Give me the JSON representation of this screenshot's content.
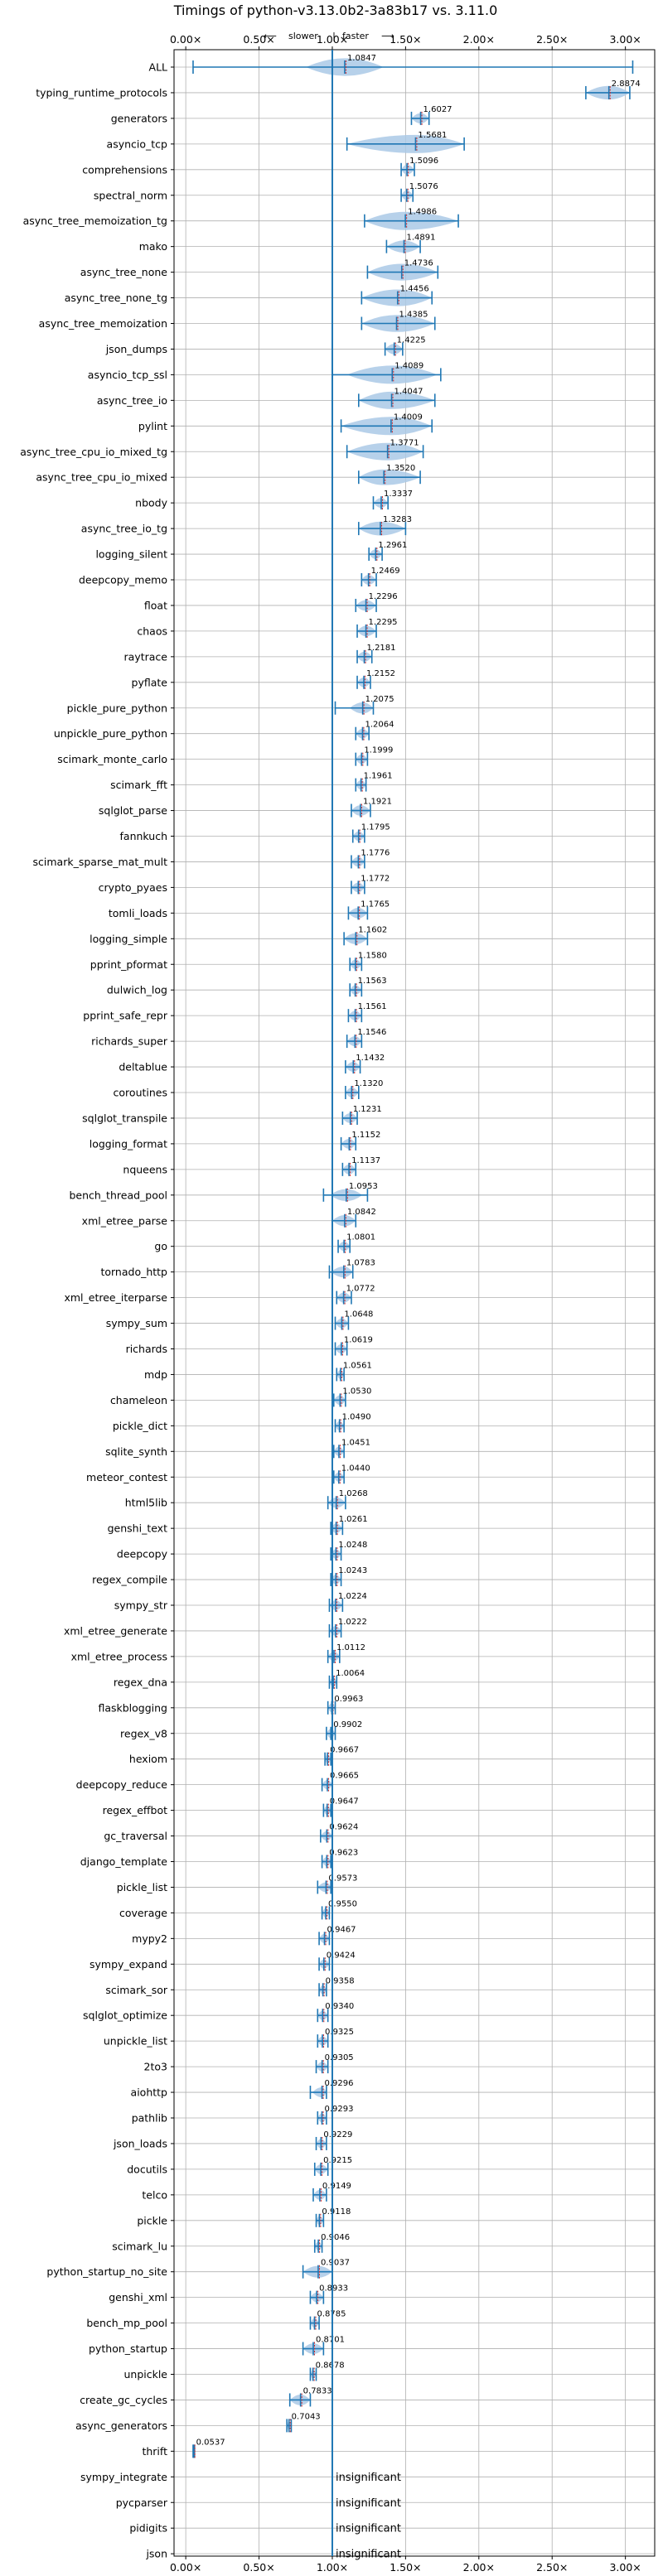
{
  "chart_data": {
    "type": "violin",
    "title": "Timings of python-v3.13.0b2-3a83b17 vs. 3.11.0",
    "direction_hint": {
      "slower": "slower",
      "faster": "faster",
      "left_arrow": "⟵",
      "right_arrow": "⟶",
      "separator": "|"
    },
    "x_ticks": [
      "0.00×",
      "0.50×",
      "1.00×",
      "1.50×",
      "2.00×",
      "2.50×",
      "3.00×"
    ],
    "x_tick_values": [
      0,
      0.5,
      1.0,
      1.5,
      2.0,
      2.5,
      3.0
    ],
    "xlim": [
      -0.08,
      3.2
    ],
    "reference_line": 1.0,
    "insignificant_label": "insignificant",
    "grid": true,
    "colors": {
      "violin": "#aac9e6",
      "line": "#1f77b4",
      "median": "#d62728",
      "grid": "#b0b0b0"
    },
    "benchmarks": [
      {
        "name": "ALL",
        "value": 1.0847,
        "label": "1.0847",
        "min": 0.05,
        "max": 3.05,
        "spread": 0.12
      },
      {
        "name": "typing_runtime_protocols",
        "value": 2.8874,
        "label": "2.8874",
        "min": 2.73,
        "max": 3.03,
        "spread": 0.12
      },
      {
        "name": "generators",
        "value": 1.6027,
        "label": "1.6027",
        "min": 1.54,
        "max": 1.66,
        "spread": 0.06
      },
      {
        "name": "asyncio_tcp",
        "value": 1.5681,
        "label": "1.5681",
        "min": 1.1,
        "max": 1.9,
        "spread": 0.22
      },
      {
        "name": "comprehensions",
        "value": 1.5096,
        "label": "1.5096",
        "min": 1.47,
        "max": 1.56,
        "spread": 0.05
      },
      {
        "name": "spectral_norm",
        "value": 1.5076,
        "label": "1.5076",
        "min": 1.47,
        "max": 1.55,
        "spread": 0.04
      },
      {
        "name": "async_tree_memoization_tg",
        "value": 1.4986,
        "label": "1.4986",
        "min": 1.22,
        "max": 1.86,
        "spread": 0.22
      },
      {
        "name": "mako",
        "value": 1.4891,
        "label": "1.4891",
        "min": 1.37,
        "max": 1.6,
        "spread": 0.09
      },
      {
        "name": "async_tree_none",
        "value": 1.4736,
        "label": "1.4736",
        "min": 1.24,
        "max": 1.72,
        "spread": 0.2
      },
      {
        "name": "async_tree_none_tg",
        "value": 1.4456,
        "label": "1.4456",
        "min": 1.2,
        "max": 1.68,
        "spread": 0.22
      },
      {
        "name": "async_tree_memoization",
        "value": 1.4385,
        "label": "1.4385",
        "min": 1.2,
        "max": 1.7,
        "spread": 0.22
      },
      {
        "name": "json_dumps",
        "value": 1.4225,
        "label": "1.4225",
        "min": 1.36,
        "max": 1.48,
        "spread": 0.06
      },
      {
        "name": "asyncio_tcp_ssl",
        "value": 1.4089,
        "label": "1.4089",
        "min": 1.0,
        "max": 1.74,
        "spread": 0.14
      },
      {
        "name": "async_tree_io",
        "value": 1.4047,
        "label": "1.4047",
        "min": 1.18,
        "max": 1.7,
        "spread": 0.2
      },
      {
        "name": "pylint",
        "value": 1.4009,
        "label": "1.4009",
        "min": 1.06,
        "max": 1.68,
        "spread": 0.18
      },
      {
        "name": "async_tree_cpu_io_mixed_tg",
        "value": 1.3771,
        "label": "1.3771",
        "min": 1.1,
        "max": 1.62,
        "spread": 0.14
      },
      {
        "name": "async_tree_cpu_io_mixed",
        "value": 1.352,
        "label": "1.3520",
        "min": 1.18,
        "max": 1.6,
        "spread": 0.18
      },
      {
        "name": "nbody",
        "value": 1.3337,
        "label": "1.3337",
        "min": 1.28,
        "max": 1.38,
        "spread": 0.04
      },
      {
        "name": "async_tree_io_tg",
        "value": 1.3283,
        "label": "1.3283",
        "min": 1.18,
        "max": 1.5,
        "spread": 0.15
      },
      {
        "name": "logging_silent",
        "value": 1.2961,
        "label": "1.2961",
        "min": 1.25,
        "max": 1.34,
        "spread": 0.04
      },
      {
        "name": "deepcopy_memo",
        "value": 1.2469,
        "label": "1.2469",
        "min": 1.2,
        "max": 1.3,
        "spread": 0.05
      },
      {
        "name": "float",
        "value": 1.2296,
        "label": "1.2296",
        "min": 1.16,
        "max": 1.3,
        "spread": 0.05
      },
      {
        "name": "chaos",
        "value": 1.2295,
        "label": "1.2295",
        "min": 1.17,
        "max": 1.3,
        "spread": 0.05
      },
      {
        "name": "raytrace",
        "value": 1.2181,
        "label": "1.2181",
        "min": 1.17,
        "max": 1.27,
        "spread": 0.04
      },
      {
        "name": "pyflate",
        "value": 1.2152,
        "label": "1.2152",
        "min": 1.17,
        "max": 1.26,
        "spread": 0.04
      },
      {
        "name": "pickle_pure_python",
        "value": 1.2075,
        "label": "1.2075",
        "min": 1.02,
        "max": 1.28,
        "spread": 0.04
      },
      {
        "name": "unpickle_pure_python",
        "value": 1.2064,
        "label": "1.2064",
        "min": 1.16,
        "max": 1.25,
        "spread": 0.04
      },
      {
        "name": "scimark_monte_carlo",
        "value": 1.1999,
        "label": "1.1999",
        "min": 1.16,
        "max": 1.24,
        "spread": 0.04
      },
      {
        "name": "scimark_fft",
        "value": 1.1961,
        "label": "1.1961",
        "min": 1.16,
        "max": 1.23,
        "spread": 0.03
      },
      {
        "name": "sqlglot_parse",
        "value": 1.1921,
        "label": "1.1921",
        "min": 1.13,
        "max": 1.26,
        "spread": 0.04
      },
      {
        "name": "fannkuch",
        "value": 1.1795,
        "label": "1.1795",
        "min": 1.14,
        "max": 1.22,
        "spread": 0.04
      },
      {
        "name": "scimark_sparse_mat_mult",
        "value": 1.1776,
        "label": "1.1776",
        "min": 1.13,
        "max": 1.22,
        "spread": 0.04
      },
      {
        "name": "crypto_pyaes",
        "value": 1.1772,
        "label": "1.1772",
        "min": 1.13,
        "max": 1.22,
        "spread": 0.04
      },
      {
        "name": "tomli_loads",
        "value": 1.1765,
        "label": "1.1765",
        "min": 1.11,
        "max": 1.24,
        "spread": 0.04
      },
      {
        "name": "logging_simple",
        "value": 1.1602,
        "label": "1.1602",
        "min": 1.08,
        "max": 1.24,
        "spread": 0.05
      },
      {
        "name": "pprint_pformat",
        "value": 1.158,
        "label": "1.1580",
        "min": 1.12,
        "max": 1.2,
        "spread": 0.04
      },
      {
        "name": "dulwich_log",
        "value": 1.1563,
        "label": "1.1563",
        "min": 1.12,
        "max": 1.2,
        "spread": 0.04
      },
      {
        "name": "pprint_safe_repr",
        "value": 1.1561,
        "label": "1.1561",
        "min": 1.11,
        "max": 1.2,
        "spread": 0.04
      },
      {
        "name": "richards_super",
        "value": 1.1546,
        "label": "1.1546",
        "min": 1.1,
        "max": 1.2,
        "spread": 0.04
      },
      {
        "name": "deltablue",
        "value": 1.1432,
        "label": "1.1432",
        "min": 1.09,
        "max": 1.19,
        "spread": 0.04
      },
      {
        "name": "coroutines",
        "value": 1.132,
        "label": "1.1320",
        "min": 1.09,
        "max": 1.18,
        "spread": 0.04
      },
      {
        "name": "sqlglot_transpile",
        "value": 1.1231,
        "label": "1.1231",
        "min": 1.07,
        "max": 1.17,
        "spread": 0.04
      },
      {
        "name": "logging_format",
        "value": 1.1152,
        "label": "1.1152",
        "min": 1.06,
        "max": 1.16,
        "spread": 0.04
      },
      {
        "name": "nqueens",
        "value": 1.1137,
        "label": "1.1137",
        "min": 1.07,
        "max": 1.16,
        "spread": 0.04
      },
      {
        "name": "bench_thread_pool",
        "value": 1.0953,
        "label": "1.0953",
        "min": 0.94,
        "max": 1.24,
        "spread": 0.05
      },
      {
        "name": "xml_etree_parse",
        "value": 1.0842,
        "label": "1.0842",
        "min": 1.0,
        "max": 1.16,
        "spread": 0.04
      },
      {
        "name": "go",
        "value": 1.0801,
        "label": "1.0801",
        "min": 1.04,
        "max": 1.12,
        "spread": 0.04
      },
      {
        "name": "tornado_http",
        "value": 1.0783,
        "label": "1.0783",
        "min": 0.98,
        "max": 1.14,
        "spread": 0.04
      },
      {
        "name": "xml_etree_iterparse",
        "value": 1.0772,
        "label": "1.0772",
        "min": 1.03,
        "max": 1.13,
        "spread": 0.04
      },
      {
        "name": "sympy_sum",
        "value": 1.0648,
        "label": "1.0648",
        "min": 1.02,
        "max": 1.11,
        "spread": 0.04
      },
      {
        "name": "richards",
        "value": 1.0619,
        "label": "1.0619",
        "min": 1.02,
        "max": 1.1,
        "spread": 0.04
      },
      {
        "name": "mdp",
        "value": 1.0561,
        "label": "1.0561",
        "min": 1.03,
        "max": 1.08,
        "spread": 0.03
      },
      {
        "name": "chameleon",
        "value": 1.053,
        "label": "1.0530",
        "min": 1.01,
        "max": 1.09,
        "spread": 0.04
      },
      {
        "name": "pickle_dict",
        "value": 1.049,
        "label": "1.0490",
        "min": 1.02,
        "max": 1.08,
        "spread": 0.03
      },
      {
        "name": "sqlite_synth",
        "value": 1.0451,
        "label": "1.0451",
        "min": 1.01,
        "max": 1.08,
        "spread": 0.03
      },
      {
        "name": "meteor_contest",
        "value": 1.044,
        "label": "1.0440",
        "min": 1.01,
        "max": 1.08,
        "spread": 0.03
      },
      {
        "name": "html5lib",
        "value": 1.0268,
        "label": "1.0268",
        "min": 0.97,
        "max": 1.09,
        "spread": 0.04
      },
      {
        "name": "genshi_text",
        "value": 1.0261,
        "label": "1.0261",
        "min": 0.99,
        "max": 1.07,
        "spread": 0.03
      },
      {
        "name": "deepcopy",
        "value": 1.0248,
        "label": "1.0248",
        "min": 0.99,
        "max": 1.06,
        "spread": 0.03
      },
      {
        "name": "regex_compile",
        "value": 1.0243,
        "label": "1.0243",
        "min": 0.99,
        "max": 1.06,
        "spread": 0.03
      },
      {
        "name": "sympy_str",
        "value": 1.0224,
        "label": "1.0224",
        "min": 0.98,
        "max": 1.07,
        "spread": 0.04
      },
      {
        "name": "xml_etree_generate",
        "value": 1.0222,
        "label": "1.0222",
        "min": 0.98,
        "max": 1.06,
        "spread": 0.03
      },
      {
        "name": "xml_etree_process",
        "value": 1.0112,
        "label": "1.0112",
        "min": 0.97,
        "max": 1.05,
        "spread": 0.03
      },
      {
        "name": "regex_dna",
        "value": 1.0064,
        "label": "1.0064",
        "min": 0.98,
        "max": 1.03,
        "spread": 0.03
      },
      {
        "name": "flaskblogging",
        "value": 0.9963,
        "label": "0.9963",
        "min": 0.97,
        "max": 1.02,
        "spread": 0.03
      },
      {
        "name": "regex_v8",
        "value": 0.9902,
        "label": "0.9902",
        "min": 0.96,
        "max": 1.02,
        "spread": 0.03
      },
      {
        "name": "hexiom",
        "value": 0.9667,
        "label": "0.9667",
        "min": 0.95,
        "max": 0.99,
        "spread": 0.03
      },
      {
        "name": "deepcopy_reduce",
        "value": 0.9665,
        "label": "0.9665",
        "min": 0.93,
        "max": 1.0,
        "spread": 0.03
      },
      {
        "name": "regex_effbot",
        "value": 0.9647,
        "label": "0.9647",
        "min": 0.94,
        "max": 0.99,
        "spread": 0.03
      },
      {
        "name": "gc_traversal",
        "value": 0.9624,
        "label": "0.9624",
        "min": 0.92,
        "max": 1.0,
        "spread": 0.03
      },
      {
        "name": "django_template",
        "value": 0.9623,
        "label": "0.9623",
        "min": 0.93,
        "max": 0.99,
        "spread": 0.03
      },
      {
        "name": "pickle_list",
        "value": 0.9573,
        "label": "0.9573",
        "min": 0.9,
        "max": 0.99,
        "spread": 0.03
      },
      {
        "name": "coverage",
        "value": 0.955,
        "label": "0.9550",
        "min": 0.93,
        "max": 0.98,
        "spread": 0.03
      },
      {
        "name": "mypy2",
        "value": 0.9467,
        "label": "0.9467",
        "min": 0.91,
        "max": 0.98,
        "spread": 0.03
      },
      {
        "name": "sympy_expand",
        "value": 0.9424,
        "label": "0.9424",
        "min": 0.91,
        "max": 0.98,
        "spread": 0.03
      },
      {
        "name": "scimark_sor",
        "value": 0.9358,
        "label": "0.9358",
        "min": 0.91,
        "max": 0.96,
        "spread": 0.03
      },
      {
        "name": "sqlglot_optimize",
        "value": 0.934,
        "label": "0.9340",
        "min": 0.9,
        "max": 0.97,
        "spread": 0.03
      },
      {
        "name": "unpickle_list",
        "value": 0.9325,
        "label": "0.9325",
        "min": 0.9,
        "max": 0.97,
        "spread": 0.03
      },
      {
        "name": "2to3",
        "value": 0.9305,
        "label": "0.9305",
        "min": 0.89,
        "max": 0.97,
        "spread": 0.03
      },
      {
        "name": "aiohttp",
        "value": 0.9296,
        "label": "0.9296",
        "min": 0.85,
        "max": 0.96,
        "spread": 0.03
      },
      {
        "name": "pathlib",
        "value": 0.9293,
        "label": "0.9293",
        "min": 0.9,
        "max": 0.96,
        "spread": 0.03
      },
      {
        "name": "json_loads",
        "value": 0.9229,
        "label": "0.9229",
        "min": 0.89,
        "max": 0.96,
        "spread": 0.03
      },
      {
        "name": "docutils",
        "value": 0.9215,
        "label": "0.9215",
        "min": 0.88,
        "max": 0.97,
        "spread": 0.03
      },
      {
        "name": "telco",
        "value": 0.9149,
        "label": "0.9149",
        "min": 0.87,
        "max": 0.96,
        "spread": 0.03
      },
      {
        "name": "pickle",
        "value": 0.9118,
        "label": "0.9118",
        "min": 0.89,
        "max": 0.94,
        "spread": 0.03
      },
      {
        "name": "scimark_lu",
        "value": 0.9046,
        "label": "0.9046",
        "min": 0.88,
        "max": 0.93,
        "spread": 0.03
      },
      {
        "name": "python_startup_no_site",
        "value": 0.9037,
        "label": "0.9037",
        "min": 0.8,
        "max": 1.0,
        "spread": 0.05
      },
      {
        "name": "genshi_xml",
        "value": 0.8933,
        "label": "0.8933",
        "min": 0.85,
        "max": 0.94,
        "spread": 0.03
      },
      {
        "name": "bench_mp_pool",
        "value": 0.8785,
        "label": "0.8785",
        "min": 0.85,
        "max": 0.91,
        "spread": 0.03
      },
      {
        "name": "python_startup",
        "value": 0.8701,
        "label": "0.8701",
        "min": 0.8,
        "max": 0.94,
        "spread": 0.05
      },
      {
        "name": "unpickle",
        "value": 0.8678,
        "label": "0.8678",
        "min": 0.85,
        "max": 0.89,
        "spread": 0.02
      },
      {
        "name": "create_gc_cycles",
        "value": 0.7833,
        "label": "0.7833",
        "min": 0.71,
        "max": 0.85,
        "spread": 0.05
      },
      {
        "name": "async_generators",
        "value": 0.7043,
        "label": "0.7043",
        "min": 0.69,
        "max": 0.72,
        "spread": 0.02
      },
      {
        "name": "thrift",
        "value": 0.0537,
        "label": "0.0537",
        "min": 0.05,
        "max": 0.06,
        "spread": 0.01
      },
      {
        "name": "sympy_integrate",
        "insignificant": true
      },
      {
        "name": "pycparser",
        "insignificant": true
      },
      {
        "name": "pidigits",
        "insignificant": true
      },
      {
        "name": "json",
        "insignificant": true
      }
    ]
  }
}
